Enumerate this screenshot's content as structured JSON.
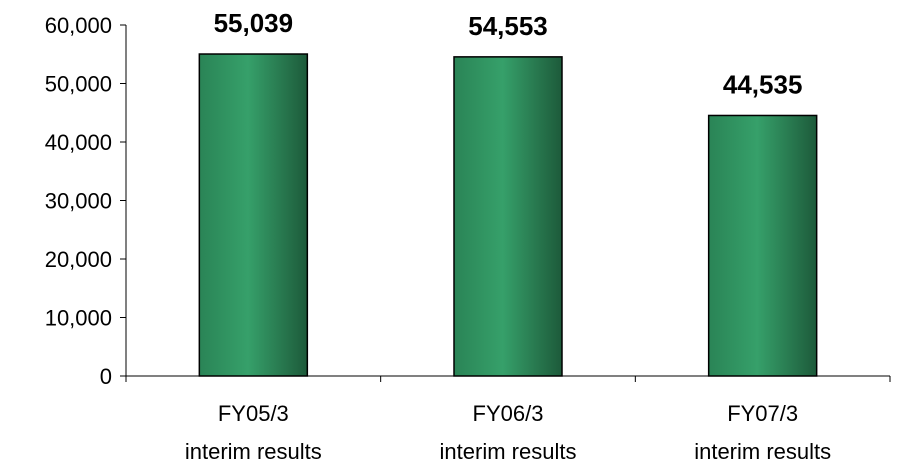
{
  "chart_data": {
    "type": "bar",
    "categories": [
      [
        "FY05/3",
        "interim results"
      ],
      [
        "FY06/3",
        "interim results"
      ],
      [
        "FY07/3",
        "interim results"
      ]
    ],
    "values": [
      55039,
      54553,
      44535
    ],
    "value_labels": [
      "55,039",
      "54,553",
      "44,535"
    ],
    "ylim": [
      0,
      60000
    ],
    "yticks": [
      0,
      10000,
      20000,
      30000,
      40000,
      50000,
      60000
    ],
    "ytick_labels": [
      "0",
      "10,000",
      "20,000",
      "30,000",
      "40,000",
      "50,000",
      "60,000"
    ],
    "title": "",
    "xlabel": "",
    "ylabel": "",
    "grid": false,
    "colors": {
      "bar_dark": "#1d5a3a",
      "bar_light": "#36a06a",
      "bar_mid": "#2a8456"
    }
  }
}
